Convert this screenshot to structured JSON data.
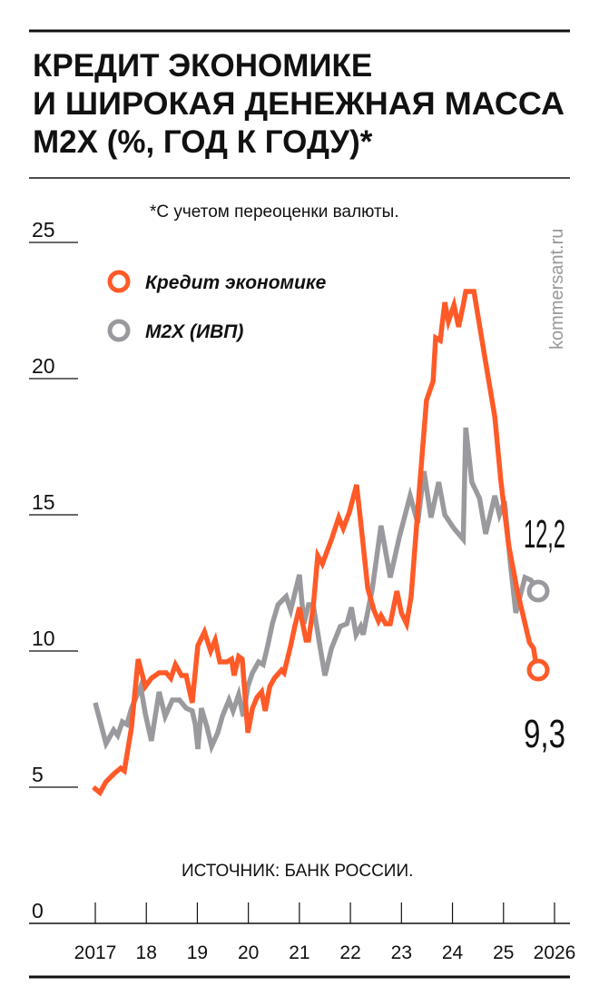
{
  "chart_data": {
    "type": "line",
    "title": [
      "КРЕДИТ ЭКОНОМИКЕ",
      "И ШИРОКАЯ ДЕНЕЖНАЯ МАССА",
      "М2Х (%, ГОД К ГОДУ)*"
    ],
    "note": "*С учетом переоценки валюты.",
    "source": "ИСТОЧНИК: БАНК РОССИИ.",
    "brand": "kommersant.ru",
    "xlabel": "",
    "ylabel": "",
    "xlim": [
      2017,
      2026
    ],
    "ylim": [
      0,
      25
    ],
    "x_ticks": [
      2017,
      2018,
      2019,
      2020,
      2021,
      2022,
      2023,
      2024,
      2025,
      2026
    ],
    "x_tick_labels": [
      "2017",
      "18",
      "19",
      "20",
      "21",
      "22",
      "23",
      "24",
      "25",
      "2026"
    ],
    "y_ticks": [
      0,
      5,
      10,
      15,
      20,
      25
    ],
    "y_tick_labels": [
      "0",
      "5",
      "10",
      "15",
      "20",
      "25"
    ],
    "legend_placement": "top-left",
    "series": [
      {
        "name": "Кредит экономике",
        "color": "#ff5a28",
        "end_label": "9,3",
        "points": [
          [
            2016.96,
            5.0
          ],
          [
            2017.09,
            4.8
          ],
          [
            2017.21,
            5.2
          ],
          [
            2017.37,
            5.5
          ],
          [
            2017.5,
            5.7
          ],
          [
            2017.57,
            5.6
          ],
          [
            2017.71,
            7.2
          ],
          [
            2017.84,
            9.7
          ],
          [
            2017.98,
            8.7
          ],
          [
            2018.1,
            9.0
          ],
          [
            2018.25,
            9.2
          ],
          [
            2018.39,
            9.2
          ],
          [
            2018.48,
            9.0
          ],
          [
            2018.57,
            9.5
          ],
          [
            2018.69,
            9.1
          ],
          [
            2018.78,
            9.1
          ],
          [
            2018.9,
            8.1
          ],
          [
            2019.01,
            10.2
          ],
          [
            2019.14,
            10.7
          ],
          [
            2019.26,
            10.0
          ],
          [
            2019.35,
            10.4
          ],
          [
            2019.44,
            9.6
          ],
          [
            2019.58,
            9.6
          ],
          [
            2019.67,
            9.7
          ],
          [
            2019.72,
            9.1
          ],
          [
            2019.81,
            9.8
          ],
          [
            2019.88,
            9.7
          ],
          [
            2019.99,
            7.0
          ],
          [
            2020.08,
            7.9
          ],
          [
            2020.17,
            8.3
          ],
          [
            2020.26,
            8.5
          ],
          [
            2020.33,
            7.8
          ],
          [
            2020.42,
            8.7
          ],
          [
            2020.51,
            9.0
          ],
          [
            2020.65,
            9.3
          ],
          [
            2020.7,
            9.2
          ],
          [
            2020.83,
            10.2
          ],
          [
            2020.91,
            10.9
          ],
          [
            2021.0,
            11.6
          ],
          [
            2021.13,
            10.4
          ],
          [
            2021.18,
            10.4
          ],
          [
            2021.27,
            11.6
          ],
          [
            2021.36,
            13.5
          ],
          [
            2021.45,
            13.2
          ],
          [
            2021.63,
            14.1
          ],
          [
            2021.77,
            14.9
          ],
          [
            2021.86,
            14.5
          ],
          [
            2021.98,
            15.1
          ],
          [
            2022.12,
            16.1
          ],
          [
            2022.21,
            14.6
          ],
          [
            2022.34,
            12.3
          ],
          [
            2022.46,
            11.5
          ],
          [
            2022.55,
            11.1
          ],
          [
            2022.6,
            11.3
          ],
          [
            2022.69,
            11.0
          ],
          [
            2022.78,
            11.0
          ],
          [
            2022.91,
            12.2
          ],
          [
            2023.0,
            11.4
          ],
          [
            2023.1,
            11.0
          ],
          [
            2023.19,
            12.0
          ],
          [
            2023.28,
            14.2
          ],
          [
            2023.35,
            15.9
          ],
          [
            2023.49,
            19.2
          ],
          [
            2023.62,
            19.9
          ],
          [
            2023.67,
            21.5
          ],
          [
            2023.76,
            21.4
          ],
          [
            2023.85,
            22.8
          ],
          [
            2023.92,
            22.1
          ],
          [
            2024.03,
            22.7
          ],
          [
            2024.12,
            21.9
          ],
          [
            2024.21,
            22.7
          ],
          [
            2024.26,
            23.2
          ],
          [
            2024.42,
            23.2
          ],
          [
            2024.65,
            20.6
          ],
          [
            2024.83,
            18.6
          ],
          [
            2024.95,
            16.2
          ],
          [
            2025.1,
            13.9
          ],
          [
            2025.27,
            12.2
          ],
          [
            2025.51,
            10.3
          ],
          [
            2025.59,
            10.1
          ],
          [
            2025.63,
            9.6
          ],
          [
            2025.68,
            9.3
          ]
        ]
      },
      {
        "name": "М2Х (ИВП)",
        "color": "#9a9a9e",
        "end_label": "12,2",
        "points": [
          [
            2017.0,
            8.1
          ],
          [
            2017.21,
            6.6
          ],
          [
            2017.36,
            7.1
          ],
          [
            2017.44,
            6.9
          ],
          [
            2017.53,
            7.4
          ],
          [
            2017.62,
            7.3
          ],
          [
            2017.71,
            7.9
          ],
          [
            2017.89,
            8.7
          ],
          [
            2017.98,
            7.7
          ],
          [
            2018.1,
            6.7
          ],
          [
            2018.25,
            8.5
          ],
          [
            2018.37,
            7.6
          ],
          [
            2018.51,
            8.2
          ],
          [
            2018.65,
            8.2
          ],
          [
            2018.78,
            7.9
          ],
          [
            2018.9,
            7.8
          ],
          [
            2018.96,
            7.3
          ],
          [
            2019.01,
            6.4
          ],
          [
            2019.08,
            7.9
          ],
          [
            2019.19,
            7.2
          ],
          [
            2019.28,
            6.5
          ],
          [
            2019.4,
            7.0
          ],
          [
            2019.49,
            7.6
          ],
          [
            2019.62,
            8.2
          ],
          [
            2019.7,
            7.8
          ],
          [
            2019.81,
            8.4
          ],
          [
            2019.9,
            7.6
          ],
          [
            2019.99,
            8.7
          ],
          [
            2020.08,
            9.2
          ],
          [
            2020.2,
            9.6
          ],
          [
            2020.29,
            9.5
          ],
          [
            2020.38,
            10.2
          ],
          [
            2020.47,
            11.0
          ],
          [
            2020.58,
            11.7
          ],
          [
            2020.74,
            12.0
          ],
          [
            2020.83,
            11.5
          ],
          [
            2021.0,
            12.8
          ],
          [
            2021.09,
            11.0
          ],
          [
            2021.18,
            11.7
          ],
          [
            2021.27,
            11.7
          ],
          [
            2021.4,
            10.2
          ],
          [
            2021.5,
            9.1
          ],
          [
            2021.63,
            10.1
          ],
          [
            2021.8,
            10.9
          ],
          [
            2021.93,
            11.0
          ],
          [
            2022.02,
            11.6
          ],
          [
            2022.11,
            10.6
          ],
          [
            2022.2,
            10.9
          ],
          [
            2022.25,
            10.6
          ],
          [
            2022.43,
            12.3
          ],
          [
            2022.6,
            14.6
          ],
          [
            2022.78,
            12.7
          ],
          [
            2022.96,
            14.2
          ],
          [
            2023.17,
            15.7
          ],
          [
            2023.32,
            14.7
          ],
          [
            2023.44,
            16.6
          ],
          [
            2023.58,
            14.9
          ],
          [
            2023.73,
            16.2
          ],
          [
            2023.85,
            15.0
          ],
          [
            2024.03,
            14.5
          ],
          [
            2024.21,
            14.1
          ],
          [
            2024.26,
            18.2
          ],
          [
            2024.38,
            16.2
          ],
          [
            2024.53,
            15.6
          ],
          [
            2024.65,
            14.3
          ],
          [
            2024.83,
            15.7
          ],
          [
            2024.92,
            15.0
          ],
          [
            2025.02,
            15.5
          ],
          [
            2025.13,
            13.3
          ],
          [
            2025.24,
            11.4
          ],
          [
            2025.42,
            12.7
          ],
          [
            2025.54,
            12.6
          ],
          [
            2025.68,
            12.2
          ]
        ]
      }
    ]
  }
}
